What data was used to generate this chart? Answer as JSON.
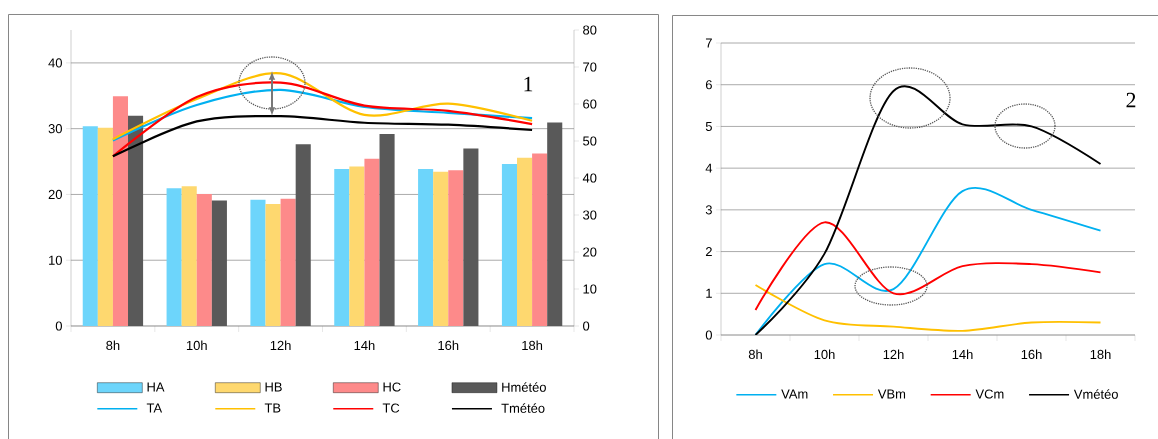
{
  "chart_data": [
    {
      "type": "bar",
      "categories": [
        "8h",
        "10h",
        "12h",
        "14h",
        "16h",
        "18h"
      ],
      "series": [
        {
          "name": "HA",
          "type": "bar",
          "axis": "y2",
          "color": "#6dd5fb",
          "values": [
            54.0,
            37.2,
            34.1,
            42.4,
            42.4,
            43.8
          ]
        },
        {
          "name": "HB",
          "type": "bar",
          "axis": "y2",
          "color": "#fed86f",
          "values": [
            53.6,
            37.8,
            33.0,
            43.1,
            41.7,
            45.5
          ]
        },
        {
          "name": "HC",
          "type": "bar",
          "axis": "y2",
          "color": "#fd8a8a",
          "values": [
            62.1,
            35.7,
            34.4,
            45.2,
            42.1,
            46.6
          ]
        },
        {
          "name": "Hmétéo",
          "type": "bar",
          "axis": "y2",
          "color": "#595959",
          "values": [
            56.8,
            33.9,
            49.1,
            51.9,
            48.0,
            55.0
          ]
        },
        {
          "name": "TA",
          "type": "line",
          "axis": "y",
          "color": "#00b0f0",
          "values": [
            28.2,
            33.6,
            35.9,
            33.3,
            32.4,
            31.6
          ]
        },
        {
          "name": "TB",
          "type": "line",
          "axis": "y",
          "color": "#ffc000",
          "values": [
            28.4,
            34.5,
            38.4,
            32.1,
            33.8,
            31.2
          ]
        },
        {
          "name": "TC",
          "type": "line",
          "axis": "y",
          "color": "#ff0000",
          "values": [
            25.8,
            34.8,
            37.0,
            33.5,
            32.7,
            30.7
          ]
        },
        {
          "name": "Tmétéo",
          "type": "line",
          "axis": "y",
          "color": "#000000",
          "values": [
            25.8,
            31.1,
            31.9,
            30.9,
            30.6,
            29.8
          ]
        }
      ],
      "ylim": [
        0,
        45
      ],
      "yticks": [
        0,
        10,
        20,
        30,
        40
      ],
      "y2lim": [
        0,
        80
      ],
      "y2ticks": [
        0,
        10,
        20,
        30,
        40,
        50,
        60,
        70,
        80
      ],
      "grid": "y",
      "legend": "bottom",
      "annotations": [
        "1"
      ]
    },
    {
      "type": "line",
      "categories": [
        "8h",
        "10h",
        "12h",
        "14h",
        "16h",
        "18h"
      ],
      "series": [
        {
          "name": "VAm",
          "color": "#00b0f0",
          "values": [
            0.0,
            1.7,
            1.1,
            3.45,
            3.0,
            2.5
          ]
        },
        {
          "name": "VBm",
          "color": "#ffc000",
          "values": [
            1.2,
            0.35,
            0.2,
            0.1,
            0.3,
            0.3
          ]
        },
        {
          "name": "VCm",
          "color": "#ff0000",
          "values": [
            0.6,
            2.7,
            1.0,
            1.65,
            1.7,
            1.5
          ]
        },
        {
          "name": "Vmétéo",
          "color": "#000000",
          "values": [
            0.0,
            1.95,
            5.85,
            5.05,
            5.0,
            4.1
          ]
        }
      ],
      "ylim": [
        0,
        7
      ],
      "yticks": [
        0,
        1,
        2,
        3,
        4,
        5,
        6,
        7
      ],
      "grid": "y",
      "legend": "bottom",
      "annotations": [
        "2"
      ]
    }
  ]
}
